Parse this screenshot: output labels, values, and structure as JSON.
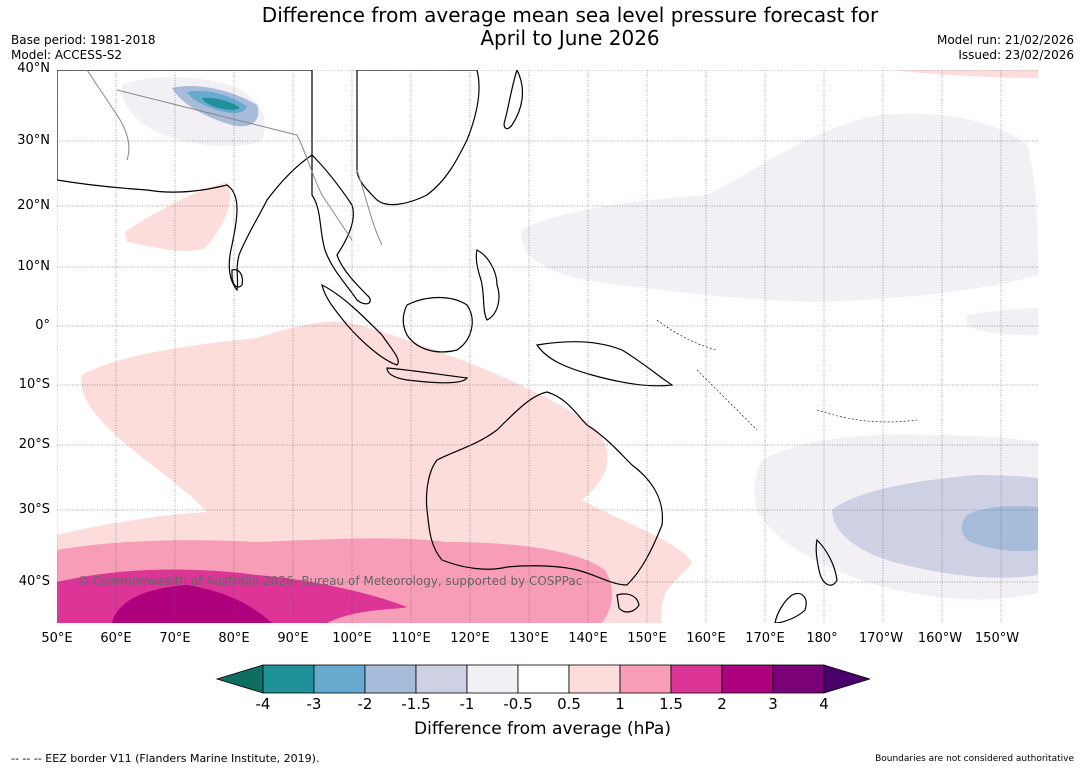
{
  "title_line1": "Difference from average mean sea level pressure forecast for",
  "title_line2": "April to June 2026",
  "meta_left": {
    "base_period": "Base period: 1981-2018",
    "model": "Model: ACCESS-S2"
  },
  "meta_right": {
    "model_run": "Model run: 21/02/2026",
    "issued": "Issued: 23/02/2026"
  },
  "lat_labels": [
    "40°N",
    "30°N",
    "20°N",
    "10°N",
    "0°",
    "10°S",
    "20°S",
    "30°S",
    "40°S"
  ],
  "lon_labels": [
    "50°E",
    "60°E",
    "70°E",
    "80°E",
    "90°E",
    "100°E",
    "110°E",
    "120°E",
    "130°E",
    "140°E",
    "150°E",
    "160°E",
    "170°E",
    "180°",
    "170°W",
    "160°W",
    "150°W"
  ],
  "copyright": "© Commonwealth of Australia 2026, Bureau of Meteorology, supported by COSPPac",
  "colorbar": {
    "labels": [
      "-4",
      "-3",
      "-2",
      "-1.5",
      "-1",
      "-0.5",
      "0.5",
      "1",
      "1.5",
      "2",
      "3",
      "4"
    ],
    "colors": [
      "#0f6e62",
      "#1f9199",
      "#68a9d0",
      "#a7bcda",
      "#ced1e4",
      "#f2eff5",
      "#ffffff",
      "#fddcdc",
      "#f79db7",
      "#dd3497",
      "#ae017e",
      "#7a0177",
      "#49006a"
    ],
    "title": "Difference from average (hPa)"
  },
  "footer_left": "--  --  -- EEZ border V11 (Flanders Marine Institute, 2019).",
  "footer_right": "Boundaries are not considered authoritative"
}
